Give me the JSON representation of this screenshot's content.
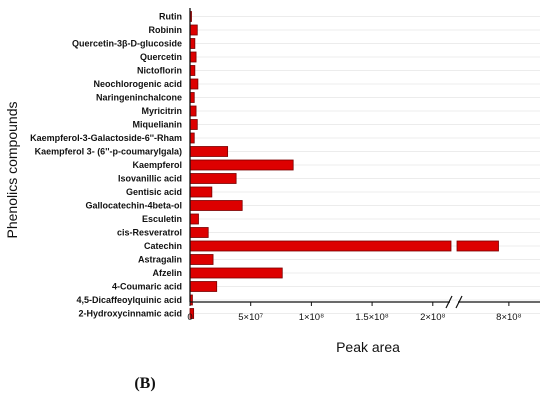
{
  "chart_data": {
    "type": "bar",
    "orientation": "horizontal",
    "panel_label": "(B)",
    "xlabel": "Peak area",
    "ylabel": "Phenolics compounds",
    "categories": [
      "Rutin",
      "Robinin",
      "Quercetin-3β-D-glucoside",
      "Quercetin",
      "Nictoflorin",
      "Neochlorogenic acid",
      "Naringeninchalcone",
      "Myricitrin",
      "Miquelianin",
      "Kaempferol-3-Galactoside-6''-Rham",
      "Kaempferol 3- (6''-p-coumarylgala)",
      "Kaempferol",
      "Isovanillic acid",
      "Gentisic acid",
      "Gallocatechin-4beta-ol",
      "Esculetin",
      "cis-Resveratrol",
      "Catechin",
      "Astragalin",
      "Afzelin",
      "4-Coumaric acid",
      "4,5-Dicaffeoylquinic acid",
      "2-Hydroxycinnamic acid"
    ],
    "values": [
      1000000,
      6000000,
      4000000,
      5000000,
      4000000,
      6500000,
      3500000,
      5000000,
      6000000,
      3500000,
      31000000,
      85000000,
      38000000,
      18000000,
      43000000,
      7000000,
      15000000,
      780000000,
      19000000,
      76000000,
      22000000,
      2000000,
      3000000
    ],
    "xlim": [
      0,
      860000000
    ],
    "axis_break": {
      "from": 215000000,
      "to": 700000000
    },
    "xticks": [
      {
        "value": 0,
        "label": "0"
      },
      {
        "value": 50000000,
        "label": "5×10⁷"
      },
      {
        "value": 100000000,
        "label": "1×10⁸"
      },
      {
        "value": 150000000,
        "label": "1.5×10⁸"
      },
      {
        "value": 200000000,
        "label": "2×10⁸"
      },
      {
        "value": 800000000,
        "label": "8×10⁸"
      }
    ],
    "grid": true,
    "colors": {
      "bar": "#dd0000",
      "bar_edge": "#7a0000",
      "grid": "#e6e6e6"
    }
  }
}
